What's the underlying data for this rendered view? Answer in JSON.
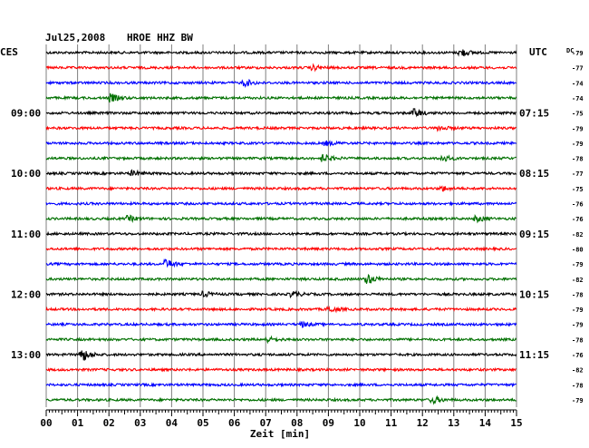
{
  "header": {
    "date": "Jul25,2008",
    "station": "HROE HHZ BW"
  },
  "corner": {
    "left": "CES",
    "right": "UTC",
    "dc": "DC"
  },
  "chart_data": {
    "type": "line",
    "title": "Jul25,2008    HROE HHZ BW",
    "xlabel": "Zeit [min]",
    "x_ticks": [
      "00",
      "01",
      "02",
      "03",
      "04",
      "05",
      "06",
      "07",
      "08",
      "09",
      "10",
      "11",
      "12",
      "13",
      "14",
      "15"
    ],
    "xlim": [
      0,
      15
    ],
    "traces_per_hour": 4,
    "trace_colors": [
      "#000000",
      "#ff0000",
      "#0000ff",
      "#007000"
    ],
    "left_time_labels": [
      {
        "row": 4,
        "label": "09:00"
      },
      {
        "row": 8,
        "label": "10:00"
      },
      {
        "row": 12,
        "label": "11:00"
      },
      {
        "row": 16,
        "label": "12:00"
      },
      {
        "row": 20,
        "label": "13:00"
      }
    ],
    "right_time_labels": [
      {
        "row": 4,
        "label": "07:15"
      },
      {
        "row": 8,
        "label": "08:15"
      },
      {
        "row": 12,
        "label": "09:15"
      },
      {
        "row": 16,
        "label": "10:15"
      },
      {
        "row": 20,
        "label": "11:15"
      }
    ],
    "dc_offsets": [
      "-79",
      "-77",
      "-74",
      "-74",
      "-75",
      "-79",
      "-79",
      "-78",
      "-77",
      "-75",
      "-76",
      "-76",
      "-82",
      "-80",
      "-79",
      "-82",
      "-78",
      "-79",
      "-79",
      "-78",
      "-76",
      "-82",
      "-78",
      "-79"
    ],
    "events": [
      {
        "row": 0,
        "minute": 13.3,
        "amp": 2.5
      },
      {
        "row": 1,
        "minute": 8.6,
        "amp": 1.6
      },
      {
        "row": 2,
        "minute": 6.4,
        "amp": 2.2
      },
      {
        "row": 3,
        "minute": 2.1,
        "amp": 3.0
      },
      {
        "row": 4,
        "minute": 11.8,
        "amp": 3.0
      },
      {
        "row": 5,
        "minute": 12.6,
        "amp": 1.6
      },
      {
        "row": 6,
        "minute": 9.0,
        "amp": 1.5
      },
      {
        "row": 7,
        "minute": 8.9,
        "amp": 2.8
      },
      {
        "row": 7,
        "minute": 12.7,
        "amp": 2.2
      },
      {
        "row": 8,
        "minute": 2.8,
        "amp": 1.8
      },
      {
        "row": 9,
        "minute": 12.7,
        "amp": 1.6
      },
      {
        "row": 11,
        "minute": 2.7,
        "amp": 1.8
      },
      {
        "row": 11,
        "minute": 13.8,
        "amp": 2.0
      },
      {
        "row": 14,
        "minute": 3.9,
        "amp": 3.0
      },
      {
        "row": 15,
        "minute": 10.3,
        "amp": 3.5
      },
      {
        "row": 16,
        "minute": 7.9,
        "amp": 2.0
      },
      {
        "row": 16,
        "minute": 5.1,
        "amp": 1.6
      },
      {
        "row": 17,
        "minute": 9.1,
        "amp": 2.0
      },
      {
        "row": 18,
        "minute": 8.2,
        "amp": 1.8
      },
      {
        "row": 19,
        "minute": 7.1,
        "amp": 2.0
      },
      {
        "row": 20,
        "minute": 1.2,
        "amp": 4.5
      },
      {
        "row": 23,
        "minute": 12.4,
        "amp": 2.4
      }
    ]
  }
}
